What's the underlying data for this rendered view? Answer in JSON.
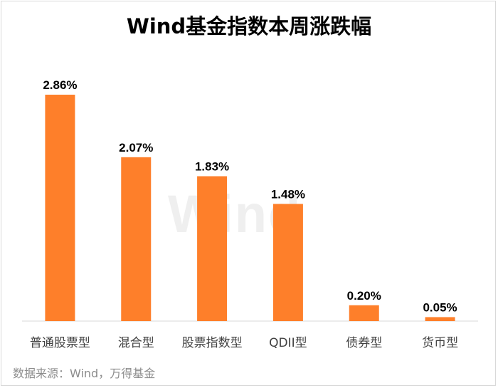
{
  "title": "Wind基金指数本周涨跌幅",
  "watermark": "Wind",
  "source": "数据来源：Wind，万得基金",
  "colors": {
    "bar": "#fe7f2a",
    "axis": "#d9d9d9",
    "label": "#000000",
    "tick": "#404040"
  },
  "chart_data": {
    "type": "bar",
    "title": "Wind基金指数本周涨跌幅",
    "xlabel": "",
    "ylabel": "",
    "categories": [
      "普通股票型",
      "混合型",
      "股票指数型",
      "QDII型",
      "债券型",
      "货币型"
    ],
    "values": [
      2.86,
      2.07,
      1.83,
      1.48,
      0.2,
      0.05
    ],
    "data_labels": [
      "2.86%",
      "2.07%",
      "1.83%",
      "1.48%",
      "0.20%",
      "0.05%"
    ],
    "ylim": [
      0,
      2.86
    ],
    "grid": false,
    "legend": "none"
  }
}
